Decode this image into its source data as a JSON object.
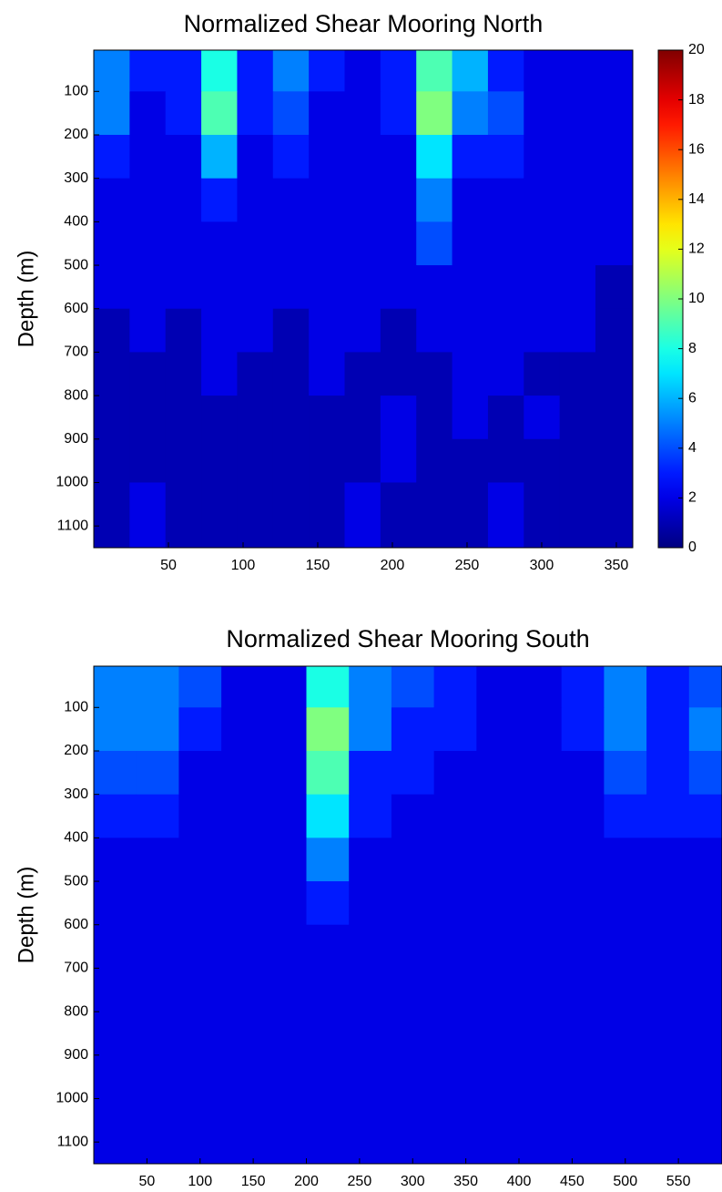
{
  "chart_data": [
    {
      "type": "heatmap",
      "title": "Normalized Shear Mooring North",
      "ylabel": "Depth (m)",
      "x": [
        12,
        36,
        60,
        84,
        108,
        132,
        156,
        180,
        204,
        228,
        252,
        276,
        300,
        324,
        348
      ],
      "y": [
        50,
        150,
        250,
        350,
        450,
        550,
        650,
        750,
        850,
        950,
        1050
      ],
      "values": [
        [
          5,
          3,
          3,
          8,
          3,
          5,
          3,
          2,
          3,
          9,
          6,
          3,
          2,
          2,
          2
        ],
        [
          5,
          2,
          3,
          9,
          3,
          4,
          2,
          2,
          3,
          10,
          5,
          4,
          2,
          2,
          2
        ],
        [
          3,
          2,
          2,
          6,
          2,
          3,
          2,
          2,
          2,
          7,
          3,
          3,
          2,
          2,
          2
        ],
        [
          2,
          2,
          2,
          3,
          2,
          2,
          2,
          2,
          2,
          5,
          2,
          2,
          2,
          2,
          2
        ],
        [
          2,
          2,
          2,
          2,
          2,
          2,
          2,
          2,
          2,
          4,
          2,
          2,
          2,
          2,
          2
        ],
        [
          2,
          2,
          2,
          2,
          2,
          2,
          2,
          2,
          2,
          2,
          2,
          2,
          2,
          2,
          1
        ],
        [
          1,
          2,
          1,
          2,
          2,
          1,
          2,
          2,
          1,
          2,
          2,
          2,
          2,
          2,
          1
        ],
        [
          1,
          1,
          1,
          2,
          1,
          1,
          2,
          1,
          1,
          1,
          2,
          2,
          1,
          1,
          1
        ],
        [
          1,
          1,
          1,
          1,
          1,
          1,
          1,
          1,
          2,
          1,
          2,
          1,
          2,
          1,
          1
        ],
        [
          1,
          1,
          1,
          1,
          1,
          1,
          1,
          1,
          2,
          1,
          1,
          1,
          1,
          1,
          1
        ],
        [
          1,
          2,
          1,
          1,
          1,
          1,
          1,
          2,
          1,
          1,
          1,
          2,
          1,
          1,
          1
        ]
      ],
      "xlim": [
        0,
        361
      ],
      "ylim": [
        5,
        1150
      ],
      "y_inverted": true,
      "xticks": [
        50,
        100,
        150,
        200,
        250,
        300,
        350
      ],
      "yticks": [
        100,
        200,
        300,
        400,
        500,
        600,
        700,
        800,
        900,
        1000,
        1100
      ],
      "colormap": "jet",
      "clim": [
        0,
        20
      ],
      "colorbar": {
        "ticks": [
          0,
          2,
          4,
          6,
          8,
          10,
          12,
          14,
          16,
          18,
          20
        ]
      }
    },
    {
      "type": "heatmap",
      "title": "Normalized Shear Mooring South",
      "ylabel": "Depth (m)",
      "x": [
        20,
        60,
        100,
        140,
        180,
        220,
        260,
        300,
        340,
        380,
        420,
        460,
        500,
        540,
        580
      ],
      "y": [
        50,
        150,
        250,
        350,
        450,
        550,
        650,
        750,
        850,
        950,
        1050
      ],
      "values": [
        [
          5,
          5,
          4,
          2,
          2,
          8,
          5,
          4,
          3,
          2,
          2,
          3,
          5,
          3,
          4
        ],
        [
          5,
          5,
          3,
          2,
          2,
          10,
          5,
          3,
          3,
          2,
          2,
          3,
          5,
          3,
          5
        ],
        [
          4,
          4,
          2,
          2,
          2,
          9,
          3,
          3,
          2,
          2,
          2,
          2,
          4,
          3,
          4
        ],
        [
          3,
          3,
          2,
          2,
          2,
          7,
          3,
          2,
          2,
          2,
          2,
          2,
          3,
          3,
          3
        ],
        [
          2,
          2,
          2,
          2,
          2,
          5,
          2,
          2,
          2,
          2,
          2,
          2,
          2,
          2,
          2
        ],
        [
          2,
          2,
          2,
          2,
          2,
          3,
          2,
          2,
          2,
          2,
          2,
          2,
          2,
          2,
          2
        ],
        [
          2,
          2,
          2,
          2,
          2,
          2,
          2,
          2,
          2,
          2,
          2,
          2,
          2,
          2,
          2
        ],
        [
          2,
          2,
          2,
          2,
          2,
          2,
          2,
          2,
          2,
          2,
          2,
          2,
          2,
          2,
          2
        ],
        [
          2,
          2,
          2,
          2,
          2,
          2,
          2,
          2,
          2,
          2,
          2,
          2,
          2,
          2,
          2
        ],
        [
          2,
          2,
          2,
          2,
          2,
          2,
          2,
          2,
          2,
          2,
          2,
          2,
          2,
          2,
          2
        ],
        [
          2,
          2,
          2,
          2,
          2,
          2,
          2,
          2,
          2,
          2,
          2,
          2,
          2,
          2,
          2
        ]
      ],
      "xlim": [
        0,
        591
      ],
      "ylim": [
        5,
        1150
      ],
      "y_inverted": true,
      "xticks": [
        50,
        100,
        150,
        200,
        250,
        300,
        350,
        400,
        450,
        500,
        550
      ],
      "yticks": [
        100,
        200,
        300,
        400,
        500,
        600,
        700,
        800,
        900,
        1000,
        1100
      ],
      "colormap": "jet",
      "clim": [
        0,
        20
      ]
    }
  ]
}
